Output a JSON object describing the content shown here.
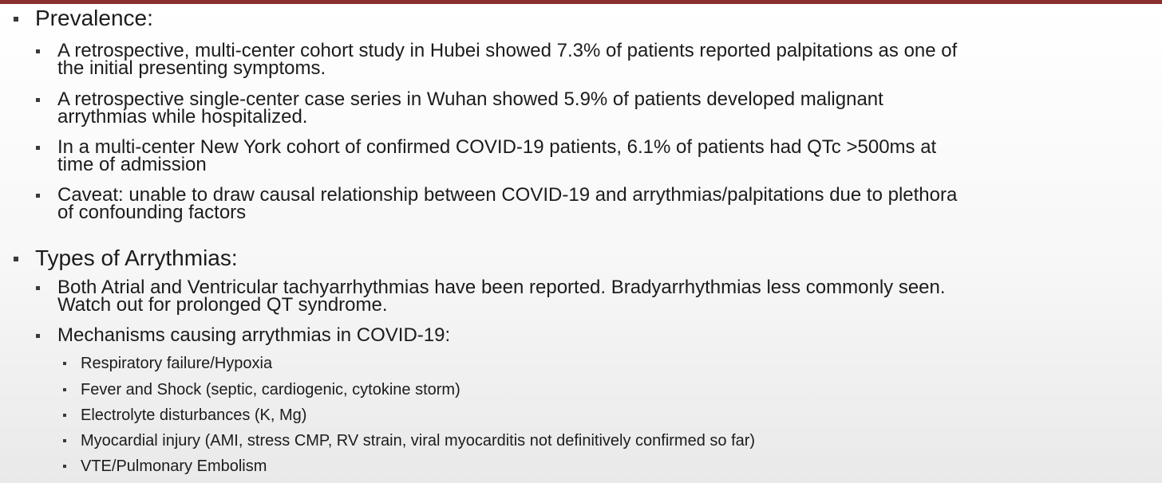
{
  "theme": {
    "accent_color": "#8a2f2f",
    "text_color": "#1c1c1c"
  },
  "sections": [
    {
      "heading": "Prevalence:",
      "items": [
        {
          "line1": "A retrospective, multi-center cohort study in Hubei showed 7.3% of patients reported palpitations as one of",
          "line2": "the initial presenting symptoms."
        },
        {
          "line1": "A retrospective single-center case series in Wuhan showed 5.9% of patients developed malignant",
          "line2": "arrythmias while hospitalized."
        },
        {
          "line1": "In a multi-center New York cohort of confirmed COVID-19 patients, 6.1% of patients had QTc >500ms at",
          "line2": "time of admission"
        },
        {
          "line1": "Caveat: unable to draw causal relationship between COVID-19 and arrythmias/palpitations due to plethora",
          "line2": "of confounding factors"
        }
      ]
    },
    {
      "heading": "Types of Arrythmias:",
      "items": [
        {
          "line1": "Both Atrial and Ventricular tachyarrhythmias have been reported. Bradyarrhythmias less commonly seen.",
          "line2": "Watch out for prolonged QT syndrome."
        },
        {
          "line1": "Mechanisms causing arrythmias in COVID-19:"
        }
      ],
      "subitems": [
        "Respiratory failure/Hypoxia",
        "Fever and Shock (septic, cardiogenic, cytokine storm)",
        "Electrolyte disturbances (K, Mg)",
        "Myocardial injury (AMI, stress CMP, RV strain, viral myocarditis not definitively confirmed so far)",
        "VTE/Pulmonary Embolism"
      ]
    }
  ]
}
